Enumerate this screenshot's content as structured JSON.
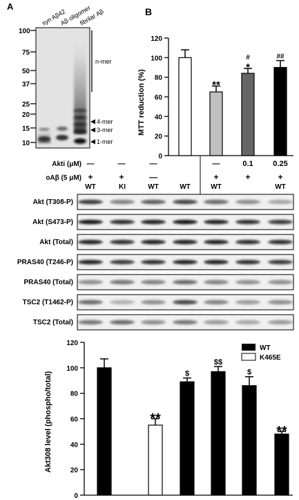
{
  "panels": {
    "a": "A",
    "b": "B"
  },
  "gel": {
    "lanes": [
      "syn Aβ42",
      "Aβ oligomer",
      "fibrilar Aβ"
    ],
    "markers": [
      "100",
      "75",
      "50",
      "37",
      "25",
      "20",
      "15",
      "10"
    ],
    "bands": [
      "n-mer",
      "4-mer",
      "3-mer",
      "1-mer"
    ]
  },
  "treatment": {
    "akti_label": "Akti (μM)",
    "akti": [
      "—",
      "—",
      "—",
      "—",
      "0.1",
      "0.25"
    ],
    "oab_label": "oAβ (5 μM)",
    "oab": [
      "+",
      "+",
      "—",
      "+",
      "+",
      "+"
    ],
    "genotype": [
      "WT",
      "KI",
      "WT",
      "WT",
      "WT",
      "WT"
    ]
  },
  "blots": [
    "Akt (T308-P)",
    "Akt (S473-P)",
    "Akt (Total)",
    "PRAS40 (T246-P)",
    "PRAS40 (Total)",
    "TSC2 (T1462-P)",
    "TSC2 (Total)"
  ],
  "chart_data": [
    {
      "type": "bar",
      "ylabel": "MTT reduction (%)",
      "ylim": [
        0,
        120
      ],
      "yticks": [
        0,
        20,
        40,
        60,
        80,
        100,
        120
      ],
      "values": [
        100,
        65,
        84,
        90
      ],
      "errors": [
        8,
        6,
        5,
        7
      ],
      "significance": [
        "",
        "**",
        "#\n*",
        "##"
      ],
      "colors": [
        "#ffffff",
        "#bfbfbf",
        "#666666",
        "#000000"
      ]
    },
    {
      "type": "bar",
      "ylabel": "Akt308 level (phospho/total)",
      "ylim": [
        0,
        120
      ],
      "yticks": [
        0,
        20,
        40,
        60,
        80,
        100,
        120
      ],
      "values": [
        100,
        55,
        89,
        97,
        86,
        48
      ],
      "errors": [
        7,
        5,
        3,
        4,
        7,
        2
      ],
      "significance": [
        "",
        "**",
        "$",
        "$$",
        "$",
        "**"
      ],
      "group": [
        "WT",
        "K465E",
        "WT",
        "WT",
        "WT",
        "WT"
      ],
      "legend": [
        {
          "name": "WT",
          "color": "#000000"
        },
        {
          "name": "K465E",
          "color": "#ffffff"
        }
      ],
      "legend_position": "top-right"
    }
  ]
}
